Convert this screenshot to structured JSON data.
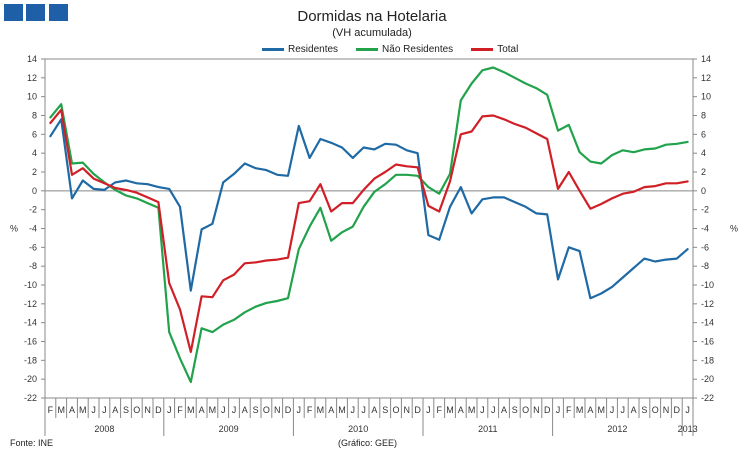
{
  "chart_data": {
    "type": "line",
    "title": "Dormidas na Hotelaria",
    "subtitle": "(VH acumulada)",
    "ylabel_left": "%",
    "ylabel_right": "%",
    "ylim": [
      -22,
      14
    ],
    "yticks": [
      14,
      12,
      10,
      8,
      6,
      4,
      2,
      0,
      -2,
      -4,
      -6,
      -8,
      -10,
      -12,
      -14,
      -16,
      -18,
      -20,
      -22
    ],
    "month_labels": [
      "F",
      "M",
      "A",
      "M",
      "J",
      "J",
      "A",
      "S",
      "O",
      "N",
      "D",
      "J",
      "F",
      "M",
      "A",
      "M",
      "J",
      "J",
      "A",
      "S",
      "O",
      "N",
      "D",
      "J",
      "F",
      "M",
      "A",
      "M",
      "J",
      "J",
      "A",
      "S",
      "O",
      "N",
      "D",
      "J",
      "F",
      "M",
      "A",
      "M",
      "J",
      "J",
      "A",
      "S",
      "O",
      "N",
      "D",
      "J",
      "F",
      "M",
      "A",
      "M",
      "J",
      "J",
      "A",
      "S",
      "O",
      "N",
      "D",
      "J"
    ],
    "years": [
      {
        "label": "2008",
        "start": 0,
        "end": 11
      },
      {
        "label": "2009",
        "start": 11,
        "end": 23
      },
      {
        "label": "2010",
        "start": 23,
        "end": 35
      },
      {
        "label": "2011",
        "start": 35,
        "end": 47
      },
      {
        "label": "2012",
        "start": 47,
        "end": 59
      },
      {
        "label": "2013",
        "start": 59,
        "end": 60
      }
    ],
    "series": [
      {
        "name": "Residentes",
        "color": "#1f6aa5",
        "values": [
          5.8,
          7.6,
          -0.8,
          1.1,
          0.2,
          0.1,
          0.9,
          1.1,
          0.8,
          0.7,
          0.4,
          0.2,
          -1.7,
          -10.6,
          -4.1,
          -3.5,
          0.9,
          1.8,
          2.9,
          2.4,
          2.2,
          1.7,
          1.6,
          6.9,
          3.5,
          5.5,
          5.1,
          4.6,
          3.5,
          4.6,
          4.4,
          5.0,
          4.9,
          4.3,
          4.0,
          -4.7,
          -5.2,
          -1.7,
          0.4,
          -2.4,
          -0.9,
          -0.7,
          -0.7,
          -1.2,
          -1.7,
          -2.4,
          -2.5,
          -9.4,
          -6.0,
          -6.4,
          -11.4,
          -10.9,
          -10.2,
          -9.2,
          -8.2,
          -7.2,
          -7.5,
          -7.3,
          -7.2,
          -6.2
        ]
      },
      {
        "name": "Não Residentes",
        "color": "#21a24b",
        "values": [
          7.8,
          9.2,
          2.9,
          3.0,
          1.8,
          0.9,
          0.1,
          -0.5,
          -0.8,
          -1.3,
          -1.8,
          -15.0,
          -17.8,
          -20.3,
          -14.6,
          -15.0,
          -14.2,
          -13.7,
          -12.9,
          -12.3,
          -11.9,
          -11.7,
          -11.4,
          -6.2,
          -3.8,
          -1.8,
          -5.3,
          -4.4,
          -3.8,
          -1.7,
          -0.1,
          0.7,
          1.7,
          1.7,
          1.6,
          0.4,
          -0.3,
          1.8,
          9.6,
          11.4,
          12.8,
          13.1,
          12.6,
          12.0,
          11.4,
          10.9,
          10.2,
          6.4,
          7.0,
          4.1,
          3.1,
          2.9,
          3.8,
          4.3,
          4.1,
          4.4,
          4.5,
          4.9,
          5.0,
          5.2
        ]
      },
      {
        "name": "Total",
        "color": "#d01f26",
        "values": [
          7.2,
          8.6,
          1.7,
          2.4,
          1.3,
          0.8,
          0.3,
          0.1,
          -0.2,
          -0.7,
          -1.2,
          -9.8,
          -12.6,
          -17.1,
          -11.2,
          -11.3,
          -9.5,
          -8.9,
          -7.7,
          -7.6,
          -7.4,
          -7.3,
          -7.1,
          -1.3,
          -1.1,
          0.7,
          -2.2,
          -1.3,
          -1.3,
          0.1,
          1.3,
          2.0,
          2.8,
          2.6,
          2.5,
          -1.6,
          -2.2,
          1.0,
          6.0,
          6.3,
          7.9,
          8.0,
          7.6,
          7.1,
          6.7,
          6.1,
          5.5,
          0.2,
          2.0,
          0.0,
          -1.9,
          -1.4,
          -0.8,
          -0.3,
          -0.1,
          0.4,
          0.5,
          0.8,
          0.8,
          1.0
        ]
      }
    ]
  },
  "footer": {
    "source": "Fonte: INE",
    "credit": "(Gráfico: GEE)"
  }
}
